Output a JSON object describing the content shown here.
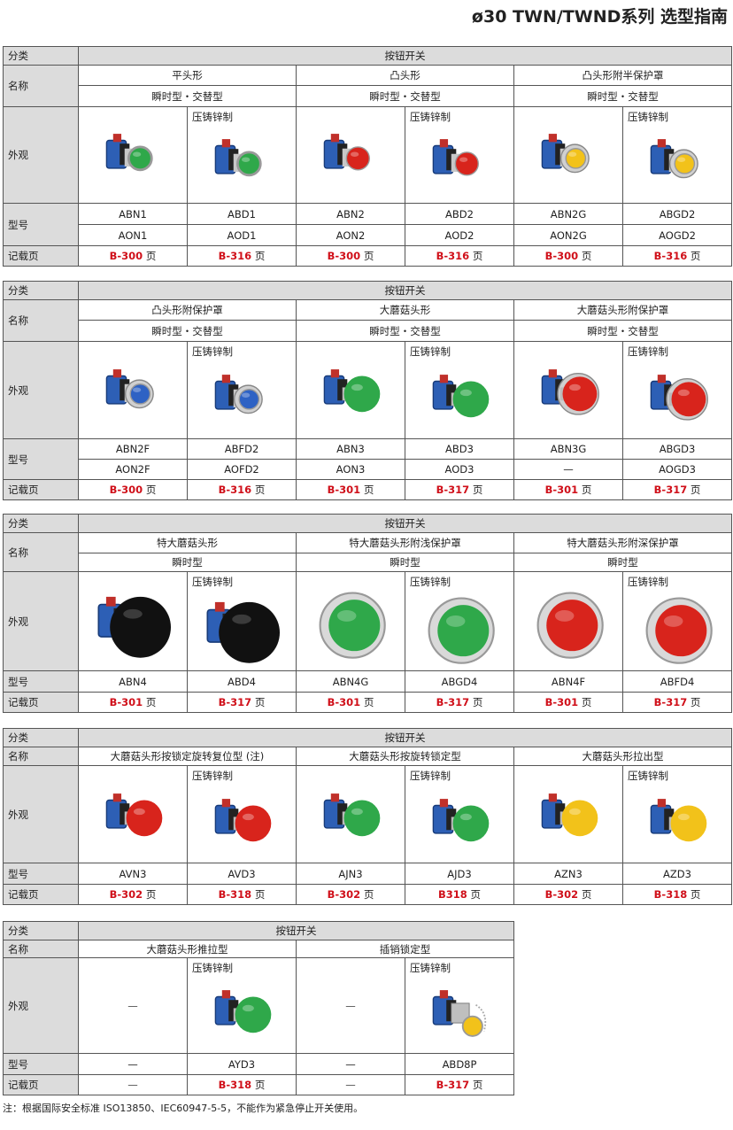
{
  "title": "ø30 TWN/TWND系列 选型指南",
  "labels": {
    "category": "分类",
    "name": "名称",
    "appearance": "外观",
    "model": "型号",
    "page": "记载页"
  },
  "die_cast": "压铸锌制",
  "page_suffix": "页",
  "footnote": "注：根据国际安全标准 ISO13850、IEC60947-5-5，不能作为紧急停止开关使用。",
  "sections": [
    {
      "category": "按钮开关",
      "groups": [
        {
          "name": "平头形",
          "subtype": "瞬时型・交替型"
        },
        {
          "name": "凸头形",
          "subtype": "瞬时型・交替型"
        },
        {
          "name": "凸头形附半保护罩",
          "subtype": "瞬时型・交替型"
        }
      ],
      "items": [
        {
          "cast": false,
          "color": "#2fa84a",
          "shape": "flat",
          "models": [
            "ABN1",
            "AON1"
          ],
          "page": "B-300"
        },
        {
          "cast": true,
          "color": "#2fa84a",
          "shape": "flat",
          "models": [
            "ABD1",
            "AOD1"
          ],
          "page": "B-316"
        },
        {
          "cast": false,
          "color": "#d8241c",
          "shape": "convex",
          "models": [
            "ABN2",
            "AON2"
          ],
          "page": "B-300"
        },
        {
          "cast": true,
          "color": "#d8241c",
          "shape": "convex",
          "models": [
            "ABD2",
            "AOD2"
          ],
          "page": "B-316"
        },
        {
          "cast": false,
          "color": "#f2c21a",
          "shape": "guard",
          "models": [
            "ABN2G",
            "AON2G"
          ],
          "page": "B-300"
        },
        {
          "cast": true,
          "color": "#f2c21a",
          "shape": "guard",
          "models": [
            "ABGD2",
            "AOGD2"
          ],
          "page": "B-316"
        }
      ]
    },
    {
      "category": "按钮开关",
      "groups": [
        {
          "name": "凸头形附保护罩",
          "subtype": "瞬时型・交替型"
        },
        {
          "name": "大蘑菇头形",
          "subtype": "瞬时型・交替型"
        },
        {
          "name": "大蘑菇头形附保护罩",
          "subtype": "瞬时型・交替型"
        }
      ],
      "items": [
        {
          "cast": false,
          "color": "#2e62c4",
          "shape": "guard",
          "models": [
            "ABN2F",
            "AON2F"
          ],
          "page": "B-300"
        },
        {
          "cast": true,
          "color": "#2e62c4",
          "shape": "guard",
          "models": [
            "ABFD2",
            "AOFD2"
          ],
          "page": "B-316"
        },
        {
          "cast": false,
          "color": "#2fa84a",
          "shape": "mushroom",
          "models": [
            "ABN3",
            "AON3"
          ],
          "page": "B-301"
        },
        {
          "cast": true,
          "color": "#2fa84a",
          "shape": "mushroom",
          "models": [
            "ABD3",
            "AOD3"
          ],
          "page": "B-317"
        },
        {
          "cast": false,
          "color": "#d8241c",
          "shape": "guardbig",
          "models": [
            "ABN3G",
            "—"
          ],
          "page": "B-301"
        },
        {
          "cast": true,
          "color": "#d8241c",
          "shape": "guardbig",
          "models": [
            "ABGD3",
            "AOGD3"
          ],
          "page": "B-317"
        }
      ]
    },
    {
      "category": "按钮开关",
      "groups": [
        {
          "name": "特大蘑菇头形",
          "subtype": "瞬时型"
        },
        {
          "name": "特大蘑菇头形附浅保护罩",
          "subtype": "瞬时型"
        },
        {
          "name": "特大蘑菇头形附深保护罩",
          "subtype": "瞬时型"
        }
      ],
      "items": [
        {
          "cast": false,
          "color": "#111111",
          "shape": "jumbo",
          "models": [
            "ABN4"
          ],
          "page": "B-301"
        },
        {
          "cast": true,
          "color": "#111111",
          "shape": "jumbo",
          "models": [
            "ABD4"
          ],
          "page": "B-317"
        },
        {
          "cast": false,
          "color": "#2fa84a",
          "shape": "jumboguard",
          "models": [
            "ABN4G"
          ],
          "page": "B-301"
        },
        {
          "cast": true,
          "color": "#2fa84a",
          "shape": "jumboguard",
          "models": [
            "ABGD4"
          ],
          "page": "B-317"
        },
        {
          "cast": false,
          "color": "#d8241c",
          "shape": "jumboguard",
          "models": [
            "ABN4F"
          ],
          "page": "B-301"
        },
        {
          "cast": true,
          "color": "#d8241c",
          "shape": "jumboguard",
          "models": [
            "ABFD4"
          ],
          "page": "B-317"
        }
      ]
    },
    {
      "category": "按钮开关",
      "groups": [
        {
          "name": "大蘑菇头形按锁定旋转复位型 (注)"
        },
        {
          "name": "大蘑菇头形按旋转锁定型"
        },
        {
          "name": "大蘑菇头形拉出型"
        }
      ],
      "items": [
        {
          "cast": false,
          "color": "#d8241c",
          "shape": "mushroom",
          "models": [
            "AVN3"
          ],
          "page": "B-302"
        },
        {
          "cast": true,
          "color": "#d8241c",
          "shape": "mushroom",
          "models": [
            "AVD3"
          ],
          "page": "B-318"
        },
        {
          "cast": false,
          "color": "#2fa84a",
          "shape": "mushroom",
          "models": [
            "AJN3"
          ],
          "page": "B-302"
        },
        {
          "cast": true,
          "color": "#2fa84a",
          "shape": "mushroom",
          "models": [
            "AJD3"
          ],
          "page": "B318"
        },
        {
          "cast": false,
          "color": "#f2c21a",
          "shape": "mushroom",
          "models": [
            "AZN3"
          ],
          "page": "B-302"
        },
        {
          "cast": true,
          "color": "#f2c21a",
          "shape": "mushroom",
          "models": [
            "AZD3"
          ],
          "page": "B-318"
        }
      ]
    },
    {
      "category": "按钮开关",
      "groups": [
        {
          "name": "大蘑菇头形推拉型"
        },
        {
          "name": "插销锁定型"
        }
      ],
      "items": [
        {
          "cast": false,
          "empty": true,
          "models": [
            "—"
          ],
          "page": "—"
        },
        {
          "cast": true,
          "color": "#2fa84a",
          "shape": "mushroom",
          "models": [
            "AYD3"
          ],
          "page": "B-318"
        },
        {
          "cast": false,
          "empty": true,
          "models": [
            "—"
          ],
          "page": "—"
        },
        {
          "cast": true,
          "color": "#f2c21a",
          "shape": "key",
          "models": [
            "ABD8P"
          ],
          "page": "B-317"
        }
      ]
    }
  ]
}
